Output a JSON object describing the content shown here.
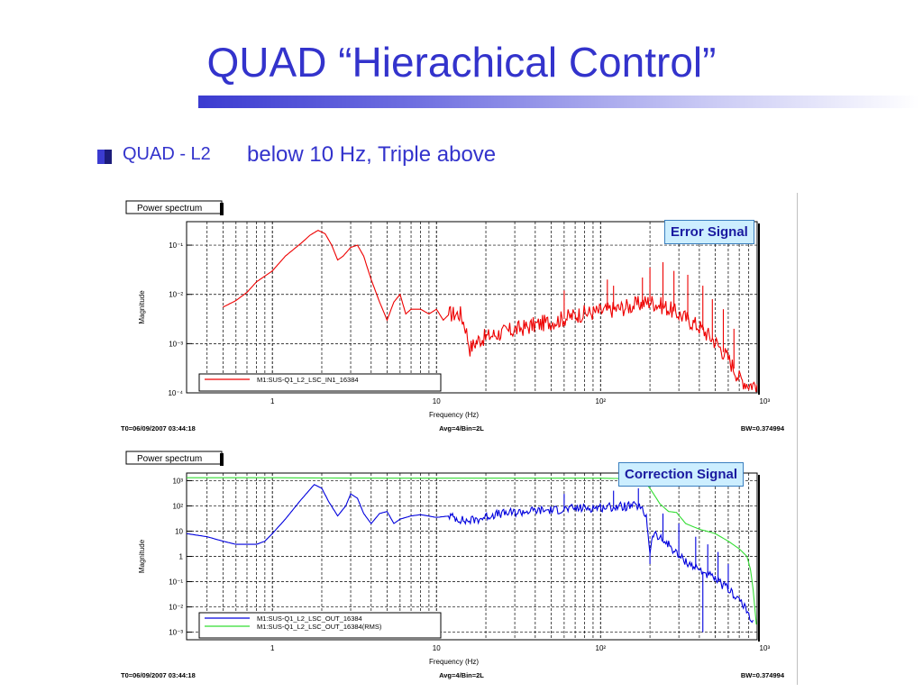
{
  "slide": {
    "title": "QUAD “Hierachical Control”",
    "bullet_part1": "QUAD - L2",
    "bullet_part2": "below 10 Hz, Triple above"
  },
  "chart_data": [
    {
      "type": "line",
      "panel_title": "Power spectrum",
      "signal_label": "Error Signal",
      "xlabel": "Frequency (Hz)",
      "ylabel": "Magnitude",
      "x_scale": "log",
      "y_scale": "log",
      "xlim": [
        0.3,
        900
      ],
      "ylim": [
        0.0001,
        0.3
      ],
      "x_ticks": [
        {
          "v": 1,
          "label": "1"
        },
        {
          "v": 10,
          "label": "10"
        },
        {
          "v": 100,
          "label": "10²"
        },
        {
          "v": 1000,
          "label": "10³"
        }
      ],
      "y_ticks": [
        {
          "v": 0.1,
          "label": "10⁻¹"
        },
        {
          "v": 0.01,
          "label": "10⁻²"
        },
        {
          "v": 0.001,
          "label": "10⁻³"
        },
        {
          "v": 0.0001,
          "label": "10⁻⁴"
        }
      ],
      "grid": true,
      "legend_position": "bottom-left",
      "footer": {
        "left": "T0=06/09/2007 03:44:18",
        "center": "Avg=4/Bin=2L",
        "right": "BW=0.374994"
      },
      "series": [
        {
          "name": "M1:SUS-Q1_L2_LSC_IN1_16384",
          "color": "#ee0000",
          "points": [
            [
              0.5,
              0.0055
            ],
            [
              0.6,
              0.0075
            ],
            [
              0.7,
              0.011
            ],
            [
              0.8,
              0.018
            ],
            [
              1.0,
              0.03
            ],
            [
              1.2,
              0.06
            ],
            [
              1.5,
              0.11
            ],
            [
              1.7,
              0.16
            ],
            [
              1.9,
              0.2
            ],
            [
              2.1,
              0.17
            ],
            [
              2.3,
              0.1
            ],
            [
              2.5,
              0.05
            ],
            [
              2.7,
              0.06
            ],
            [
              3.0,
              0.09
            ],
            [
              3.3,
              0.1
            ],
            [
              3.6,
              0.06
            ],
            [
              4.0,
              0.02
            ],
            [
              4.5,
              0.007
            ],
            [
              5.0,
              0.003
            ],
            [
              5.5,
              0.007
            ],
            [
              6.0,
              0.01
            ],
            [
              6.5,
              0.004
            ],
            [
              7.0,
              0.005
            ],
            [
              8.0,
              0.005
            ],
            [
              9.0,
              0.004
            ],
            [
              10,
              0.005
            ],
            [
              11,
              0.003
            ],
            [
              12,
              0.004
            ],
            [
              13,
              0.004
            ],
            [
              14,
              0.004
            ],
            [
              15,
              0.0022
            ],
            [
              16,
              0.0008
            ],
            [
              18,
              0.0012
            ],
            [
              22,
              0.0015
            ],
            [
              30,
              0.0019
            ],
            [
              40,
              0.0024
            ],
            [
              55,
              0.003
            ],
            [
              75,
              0.004
            ],
            [
              100,
              0.0045
            ],
            [
              130,
              0.0052
            ],
            [
              160,
              0.006
            ],
            [
              200,
              0.0072
            ],
            [
              250,
              0.0055
            ],
            [
              300,
              0.004
            ],
            [
              400,
              0.0022
            ],
            [
              500,
              0.0011
            ],
            [
              600,
              0.0005
            ],
            [
              700,
              0.0002
            ],
            [
              800,
              0.00015
            ],
            [
              900,
              0.00015
            ]
          ],
          "spikes": [
            [
              60,
              0.012
            ],
            [
              110,
              0.02
            ],
            [
              120,
              0.015
            ],
            [
              180,
              0.022
            ],
            [
              200,
              0.035
            ],
            [
              240,
              0.045
            ],
            [
              280,
              0.03
            ],
            [
              340,
              0.025
            ],
            [
              420,
              0.015
            ],
            [
              480,
              0.008
            ],
            [
              560,
              0.005
            ],
            [
              650,
              0.002
            ]
          ]
        }
      ]
    },
    {
      "type": "line",
      "panel_title": "Power spectrum",
      "signal_label": "Correction Signal",
      "xlabel": "Frequency (Hz)",
      "ylabel": "Magnitude",
      "x_scale": "log",
      "y_scale": "log",
      "xlim": [
        0.3,
        900
      ],
      "ylim": [
        0.0005,
        2000
      ],
      "x_ticks": [
        {
          "v": 1,
          "label": "1"
        },
        {
          "v": 10,
          "label": "10"
        },
        {
          "v": 100,
          "label": "10²"
        },
        {
          "v": 1000,
          "label": "10³"
        }
      ],
      "y_ticks": [
        {
          "v": 1000,
          "label": "10³"
        },
        {
          "v": 100,
          "label": "10²"
        },
        {
          "v": 10,
          "label": "10"
        },
        {
          "v": 1,
          "label": "1"
        },
        {
          "v": 0.1,
          "label": "10⁻¹"
        },
        {
          "v": 0.01,
          "label": "10⁻²"
        },
        {
          "v": 0.001,
          "label": "10⁻³"
        }
      ],
      "grid": true,
      "legend_position": "bottom-left",
      "footer": {
        "left": "T0=06/09/2007 03:44:18",
        "center": "Avg=4/Bin=2L",
        "right": "BW=0.374994"
      },
      "series": [
        {
          "name": "M1:SUS-Q1_L2_LSC_OUT_16384",
          "color": "#0000dd",
          "points": [
            [
              0.3,
              8
            ],
            [
              0.4,
              6
            ],
            [
              0.5,
              4
            ],
            [
              0.6,
              3
            ],
            [
              0.8,
              3
            ],
            [
              0.9,
              4
            ],
            [
              1.0,
              8
            ],
            [
              1.2,
              30
            ],
            [
              1.5,
              180
            ],
            [
              1.8,
              700
            ],
            [
              2.0,
              500
            ],
            [
              2.2,
              150
            ],
            [
              2.5,
              40
            ],
            [
              2.8,
              100
            ],
            [
              3.0,
              300
            ],
            [
              3.3,
              200
            ],
            [
              3.6,
              50
            ],
            [
              4.0,
              20
            ],
            [
              4.5,
              50
            ],
            [
              5.0,
              60
            ],
            [
              5.5,
              20
            ],
            [
              6.0,
              30
            ],
            [
              7.0,
              40
            ],
            [
              8.0,
              45
            ],
            [
              10,
              35
            ],
            [
              12,
              40
            ],
            [
              15,
              25
            ],
            [
              18,
              30
            ],
            [
              22,
              45
            ],
            [
              30,
              55
            ],
            [
              40,
              65
            ],
            [
              55,
              70
            ],
            [
              70,
              80
            ],
            [
              90,
              85
            ],
            [
              110,
              90
            ],
            [
              140,
              95
            ],
            [
              170,
              100
            ],
            [
              190,
              40
            ],
            [
              200,
              1.5
            ],
            [
              210,
              8
            ],
            [
              230,
              5
            ],
            [
              260,
              3
            ],
            [
              300,
              1
            ],
            [
              350,
              0.5
            ],
            [
              420,
              0.25
            ],
            [
              500,
              0.12
            ],
            [
              600,
              0.05
            ],
            [
              700,
              0.02
            ],
            [
              800,
              0.005
            ],
            [
              850,
              0.003
            ]
          ],
          "spikes": [
            [
              60,
              300
            ],
            [
              120,
              400
            ],
            [
              170,
              500
            ],
            [
              200,
              0.5
            ],
            [
              240,
              50
            ],
            [
              300,
              20
            ],
            [
              380,
              6
            ],
            [
              450,
              3
            ],
            [
              520,
              1.5
            ],
            [
              600,
              0.5
            ],
            [
              420,
              0.001
            ]
          ]
        },
        {
          "name": "M1:SUS-Q1_L2_LSC_OUT_16384(RMS)",
          "color": "#33dd33",
          "points": [
            [
              0.3,
              1300
            ],
            [
              1,
              1300
            ],
            [
              5,
              1250
            ],
            [
              30,
              1250
            ],
            [
              100,
              1250
            ],
            [
              150,
              1200
            ],
            [
              180,
              1100
            ],
            [
              200,
              500
            ],
            [
              230,
              120
            ],
            [
              260,
              60
            ],
            [
              290,
              55
            ],
            [
              330,
              20
            ],
            [
              400,
              12
            ],
            [
              500,
              8
            ],
            [
              600,
              4
            ],
            [
              700,
              2
            ],
            [
              780,
              1
            ],
            [
              820,
              0.3
            ],
            [
              850,
              0.05
            ],
            [
              870,
              0.01
            ],
            [
              890,
              0.002
            ]
          ],
          "spikes": []
        }
      ]
    }
  ]
}
